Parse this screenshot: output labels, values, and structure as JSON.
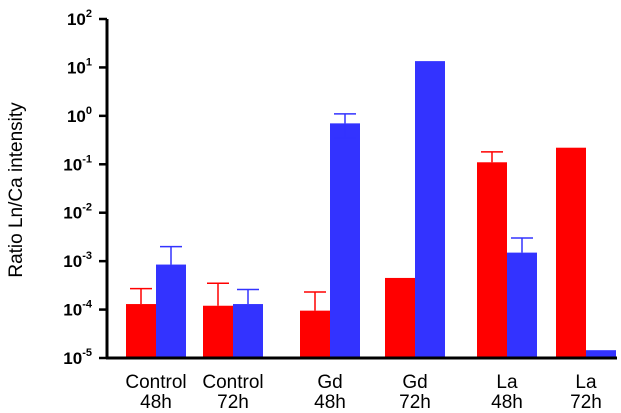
{
  "chart_data": {
    "type": "bar",
    "title": "",
    "xlabel": "",
    "ylabel": "Ratio Ln/Ca intensity",
    "yscale": "log",
    "ylim": [
      1e-05,
      100
    ],
    "yticks": [
      {
        "base": "10",
        "exp": "-5"
      },
      {
        "base": "10",
        "exp": "-4"
      },
      {
        "base": "10",
        "exp": "-3"
      },
      {
        "base": "10",
        "exp": "-2"
      },
      {
        "base": "10",
        "exp": "-1"
      },
      {
        "base": "10",
        "exp": "0"
      },
      {
        "base": "10",
        "exp": "1"
      },
      {
        "base": "10",
        "exp": "2"
      }
    ],
    "categories": [
      [
        "Control",
        "48h"
      ],
      [
        "Control",
        "72h"
      ],
      [
        "Gd",
        "48h"
      ],
      [
        "Gd",
        "72h"
      ],
      [
        "La",
        "48h"
      ],
      [
        "La",
        "72h"
      ]
    ],
    "grid": false,
    "legend": "none",
    "series": [
      {
        "color": "#ff0000",
        "values": [
          0.00013,
          0.00012,
          9.5e-05,
          0.00045,
          0.11,
          0.22
        ],
        "error_upper": [
          0.00027,
          0.00035,
          0.00023,
          null,
          0.18,
          null
        ]
      },
      {
        "color": "#3333ff",
        "values": [
          0.00085,
          0.00013,
          0.7,
          13.5,
          0.0015,
          1.45e-05
        ],
        "error_upper": [
          0.002,
          0.00026,
          1.1,
          null,
          0.003,
          null
        ],
        "error_lower": [
          null,
          null,
          0.35,
          null,
          null,
          null
        ]
      }
    ]
  }
}
